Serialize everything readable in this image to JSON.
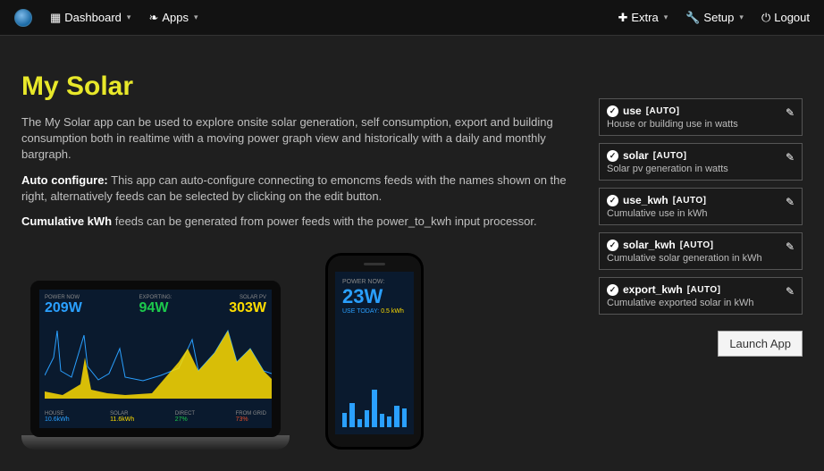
{
  "nav": {
    "dashboard": "Dashboard",
    "apps": "Apps",
    "extra": "Extra",
    "setup": "Setup",
    "logout": "Logout"
  },
  "title": "My Solar",
  "paras": {
    "p1": "The My Solar app can be used to explore onsite solar generation, self consumption, export and building consumption both in realtime with a moving power graph view and historically with a daily and monthly bargraph.",
    "p2_bold": "Auto configure:",
    "p2_rest": " This app can auto-configure connecting to emoncms feeds with the names shown on the right, alternatively feeds can be selected by clicking on the edit button.",
    "p3_bold": "Cumulative kWh",
    "p3_rest": " feeds can be generated from power feeds with the power_to_kwh input processor."
  },
  "feeds": [
    {
      "name": "use",
      "auto": "[AUTO]",
      "desc": "House or building use in watts"
    },
    {
      "name": "solar",
      "auto": "[AUTO]",
      "desc": "Solar pv generation in watts"
    },
    {
      "name": "use_kwh",
      "auto": "[AUTO]",
      "desc": "Cumulative use in kWh"
    },
    {
      "name": "solar_kwh",
      "auto": "[AUTO]",
      "desc": "Cumulative solar generation in kWh"
    },
    {
      "name": "export_kwh",
      "auto": "[AUTO]",
      "desc": "Cumulative exported solar in kWh"
    }
  ],
  "launch_label": "Launch App",
  "laptop": {
    "triplets": [
      {
        "label": "POWER NOW",
        "value": "209W",
        "color": "c-blue"
      },
      {
        "label": "EXPORTING:",
        "value": "94W",
        "color": "c-green"
      },
      {
        "label": "SOLAR PV",
        "value": "303W",
        "color": "c-yellow"
      }
    ],
    "spark_colors": {
      "use": "#2aa0ff",
      "solar": "#fddc00"
    },
    "footer": [
      {
        "label": "HOUSE",
        "value": "10.6kWh",
        "color": "c-blue"
      },
      {
        "label": "SOLAR",
        "value": "11.6kWh",
        "color": "c-yellow"
      },
      {
        "label": "DIRECT",
        "value": "27%",
        "color": "c-green"
      },
      {
        "label": "FROM GRID",
        "value": "73%",
        "color": "c-red"
      }
    ]
  },
  "phone": {
    "power_label": "POWER NOW:",
    "power_value": "23W",
    "today_label": "USE TODAY:",
    "today_value": "0.5 kWh",
    "bar_heights_pct": [
      33,
      55,
      18,
      38,
      85,
      30,
      25,
      48,
      42
    ]
  }
}
